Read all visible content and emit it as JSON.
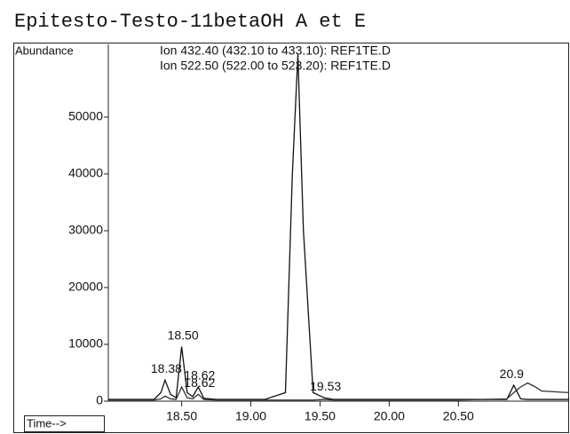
{
  "chart_data": {
    "type": "line",
    "title": "Epitesto-Testo-11betaOH A et E",
    "ylabel": "Abundance",
    "xlabel": "Time-->",
    "x": [
      17.97,
      18.3,
      18.35,
      18.38,
      18.42,
      18.46,
      18.5,
      18.54,
      18.58,
      18.62,
      18.66,
      18.75,
      19.1,
      19.25,
      19.3,
      19.34,
      19.38,
      19.45,
      19.53,
      19.6,
      20.0,
      20.5,
      20.85,
      20.9,
      20.95,
      21.0,
      21.05,
      21.1,
      21.3
    ],
    "series": [
      {
        "name": "Ion 432.40 (432.10 to 433.10): REF1TE.D",
        "color": "#111111",
        "values": [
          300,
          300,
          1500,
          3700,
          1200,
          600,
          9600,
          1500,
          800,
          2500,
          500,
          300,
          300,
          1500,
          40000,
          61000,
          30000,
          1500,
          600,
          300,
          300,
          300,
          300,
          2800,
          400,
          300,
          300,
          300,
          300
        ]
      },
      {
        "name": "Ion 522.50 (522.00 to 523.20): REF1TE.D",
        "color": "#333333",
        "values": [
          200,
          200,
          400,
          900,
          400,
          300,
          2500,
          600,
          400,
          1200,
          300,
          200,
          200,
          200,
          200,
          200,
          200,
          200,
          300,
          200,
          200,
          200,
          400,
          1500,
          2500,
          3200,
          2600,
          1800,
          1500
        ]
      }
    ],
    "annotations": [
      {
        "text": "18.38",
        "x": 18.38,
        "y": 3700
      },
      {
        "text": "18.50",
        "x": 18.5,
        "y": 9600
      },
      {
        "text": "18.62",
        "x": 18.62,
        "y": 2500
      },
      {
        "text": "18.62",
        "x": 18.62,
        "y": 1200
      },
      {
        "text": "19.53",
        "x": 19.53,
        "y": 600
      },
      {
        "text": "20.9",
        "x": 20.9,
        "y": 2800
      }
    ],
    "xlim": [
      17.97,
      21.3
    ],
    "ylim": [
      0,
      62800
    ],
    "xticks": [
      {
        "value": 18.5,
        "label": "18.50"
      },
      {
        "value": 19,
        "label": "19.00"
      },
      {
        "value": 19.5,
        "label": "19.50"
      },
      {
        "value": 20,
        "label": "20.00"
      },
      {
        "value": 20.5,
        "label": "20.50"
      }
    ],
    "yticks": [
      0,
      10000,
      20000,
      30000,
      40000,
      50000
    ]
  }
}
